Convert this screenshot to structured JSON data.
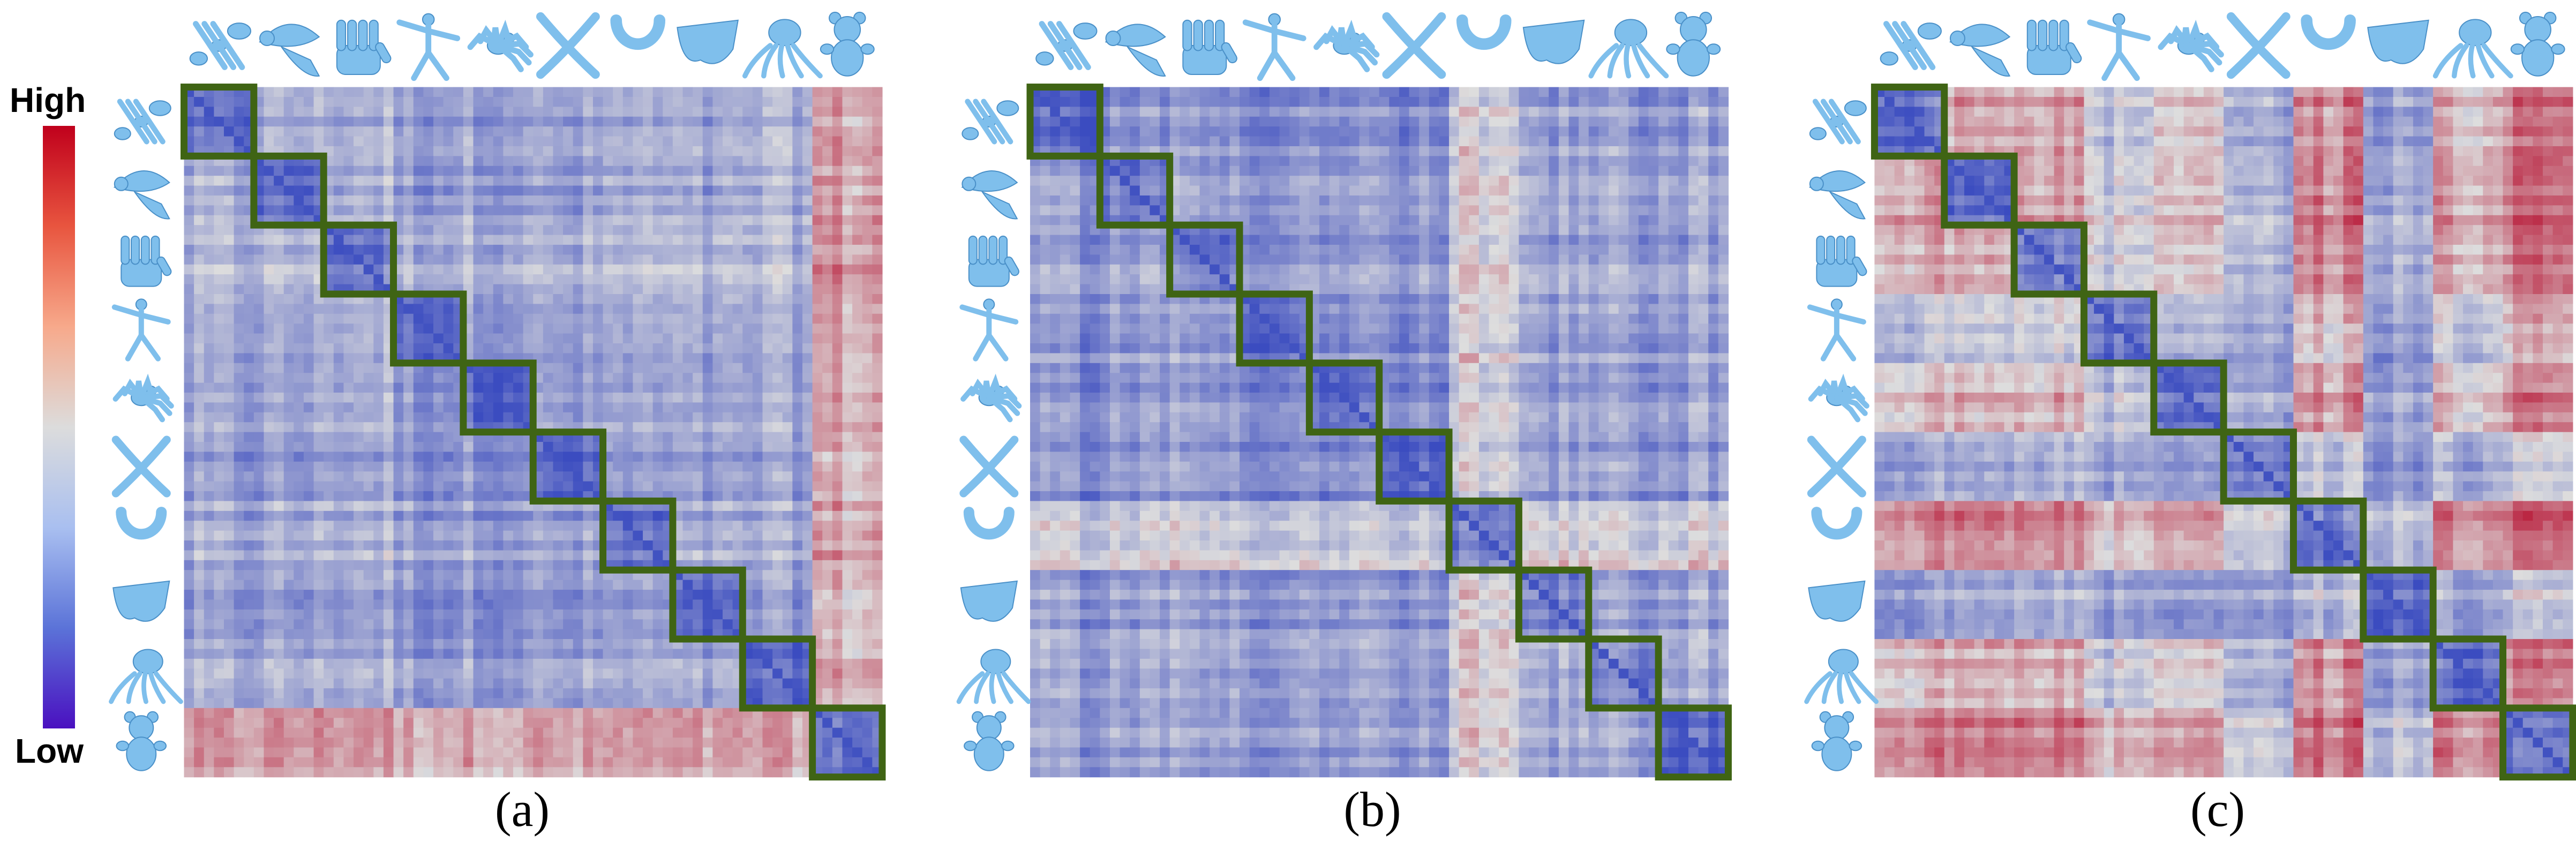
{
  "figure": {
    "legend": {
      "high_label": "High",
      "low_label": "Low",
      "gradient_colors": [
        "#c0001c",
        "#e8553f",
        "#f7a98b",
        "#dcdcdc",
        "#a9bff0",
        "#5b73d8",
        "#4a10c0"
      ]
    },
    "shape_icons": [
      "ant-icon",
      "bird-icon",
      "hand-icon",
      "human-icon",
      "spider-icon",
      "pliers-icon",
      "horseshoe-icon",
      "glasses-icon",
      "octopus-icon",
      "teddy-bear-icon"
    ],
    "icon_color": "#7fbfec",
    "block_outline_color": "#3f6414",
    "colormap": {
      "low": "#3b4cc0",
      "mid": "#dddddd",
      "high": "#b40426"
    }
  },
  "chart_data": [
    {
      "type": "heatmap",
      "label": "(a)",
      "categories": [
        "ant",
        "bird",
        "hand",
        "human",
        "spider",
        "pliers",
        "horseshoe",
        "glasses",
        "octopus",
        "teddy bear"
      ],
      "value_scale": [
        "Low",
        "High"
      ],
      "category_relation": [
        [
          0.1,
          0.32,
          0.34,
          0.28,
          0.3,
          0.27,
          0.3,
          0.28,
          0.33,
          0.62
        ],
        [
          0.32,
          0.1,
          0.36,
          0.28,
          0.3,
          0.26,
          0.32,
          0.28,
          0.34,
          0.64
        ],
        [
          0.34,
          0.36,
          0.14,
          0.34,
          0.36,
          0.32,
          0.36,
          0.33,
          0.36,
          0.66
        ],
        [
          0.28,
          0.28,
          0.34,
          0.1,
          0.27,
          0.25,
          0.29,
          0.27,
          0.3,
          0.6
        ],
        [
          0.3,
          0.3,
          0.36,
          0.27,
          0.1,
          0.27,
          0.3,
          0.28,
          0.31,
          0.62
        ],
        [
          0.27,
          0.26,
          0.32,
          0.25,
          0.27,
          0.08,
          0.27,
          0.26,
          0.3,
          0.6
        ],
        [
          0.3,
          0.32,
          0.36,
          0.29,
          0.3,
          0.27,
          0.12,
          0.29,
          0.32,
          0.62
        ],
        [
          0.28,
          0.28,
          0.33,
          0.27,
          0.28,
          0.26,
          0.29,
          0.1,
          0.3,
          0.6
        ],
        [
          0.33,
          0.34,
          0.36,
          0.3,
          0.31,
          0.3,
          0.32,
          0.3,
          0.1,
          0.62
        ],
        [
          0.62,
          0.64,
          0.66,
          0.6,
          0.62,
          0.6,
          0.62,
          0.6,
          0.62,
          0.12
        ]
      ],
      "highlighted_blocks": "diagonal"
    },
    {
      "type": "heatmap",
      "label": "(b)",
      "categories": [
        "ant",
        "bird",
        "hand",
        "human",
        "spider",
        "pliers",
        "horseshoe",
        "glasses",
        "octopus",
        "teddy bear"
      ],
      "value_scale": [
        "Low",
        "High"
      ],
      "category_relation": [
        [
          0.06,
          0.26,
          0.28,
          0.24,
          0.24,
          0.22,
          0.48,
          0.28,
          0.28,
          0.3
        ],
        [
          0.26,
          0.16,
          0.3,
          0.28,
          0.28,
          0.26,
          0.5,
          0.3,
          0.3,
          0.32
        ],
        [
          0.28,
          0.3,
          0.16,
          0.28,
          0.28,
          0.26,
          0.5,
          0.3,
          0.3,
          0.32
        ],
        [
          0.24,
          0.28,
          0.28,
          0.14,
          0.24,
          0.22,
          0.48,
          0.28,
          0.28,
          0.3
        ],
        [
          0.24,
          0.28,
          0.28,
          0.24,
          0.12,
          0.22,
          0.46,
          0.28,
          0.28,
          0.3
        ],
        [
          0.22,
          0.26,
          0.26,
          0.22,
          0.22,
          0.06,
          0.44,
          0.26,
          0.26,
          0.28
        ],
        [
          0.48,
          0.5,
          0.5,
          0.48,
          0.46,
          0.44,
          0.2,
          0.5,
          0.5,
          0.52
        ],
        [
          0.28,
          0.3,
          0.3,
          0.28,
          0.28,
          0.26,
          0.5,
          0.18,
          0.3,
          0.32
        ],
        [
          0.28,
          0.3,
          0.3,
          0.28,
          0.28,
          0.26,
          0.5,
          0.3,
          0.18,
          0.32
        ],
        [
          0.3,
          0.32,
          0.32,
          0.3,
          0.3,
          0.28,
          0.52,
          0.32,
          0.32,
          0.1
        ]
      ],
      "highlighted_blocks": "diagonal"
    },
    {
      "type": "heatmap",
      "label": "(c)",
      "categories": [
        "ant",
        "bird",
        "hand",
        "human",
        "spider",
        "pliers",
        "horseshoe",
        "glasses",
        "octopus",
        "teddy bear"
      ],
      "value_scale": [
        "Low",
        "High"
      ],
      "category_relation": [
        [
          0.14,
          0.66,
          0.62,
          0.4,
          0.58,
          0.3,
          0.7,
          0.3,
          0.6,
          0.72
        ],
        [
          0.66,
          0.14,
          0.64,
          0.46,
          0.62,
          0.34,
          0.74,
          0.36,
          0.66,
          0.76
        ],
        [
          0.62,
          0.64,
          0.16,
          0.44,
          0.58,
          0.34,
          0.7,
          0.36,
          0.62,
          0.72
        ],
        [
          0.4,
          0.46,
          0.44,
          0.14,
          0.4,
          0.28,
          0.56,
          0.3,
          0.44,
          0.58
        ],
        [
          0.58,
          0.62,
          0.58,
          0.4,
          0.16,
          0.3,
          0.68,
          0.32,
          0.58,
          0.7
        ],
        [
          0.3,
          0.34,
          0.34,
          0.28,
          0.3,
          0.14,
          0.4,
          0.26,
          0.34,
          0.42
        ],
        [
          0.7,
          0.74,
          0.7,
          0.56,
          0.68,
          0.4,
          0.16,
          0.4,
          0.7,
          0.76
        ],
        [
          0.3,
          0.36,
          0.36,
          0.3,
          0.32,
          0.26,
          0.4,
          0.14,
          0.34,
          0.42
        ],
        [
          0.6,
          0.66,
          0.62,
          0.44,
          0.58,
          0.34,
          0.7,
          0.34,
          0.16,
          0.72
        ],
        [
          0.72,
          0.76,
          0.72,
          0.58,
          0.7,
          0.42,
          0.76,
          0.42,
          0.72,
          0.14
        ]
      ],
      "highlighted_blocks": "diagonal"
    }
  ]
}
